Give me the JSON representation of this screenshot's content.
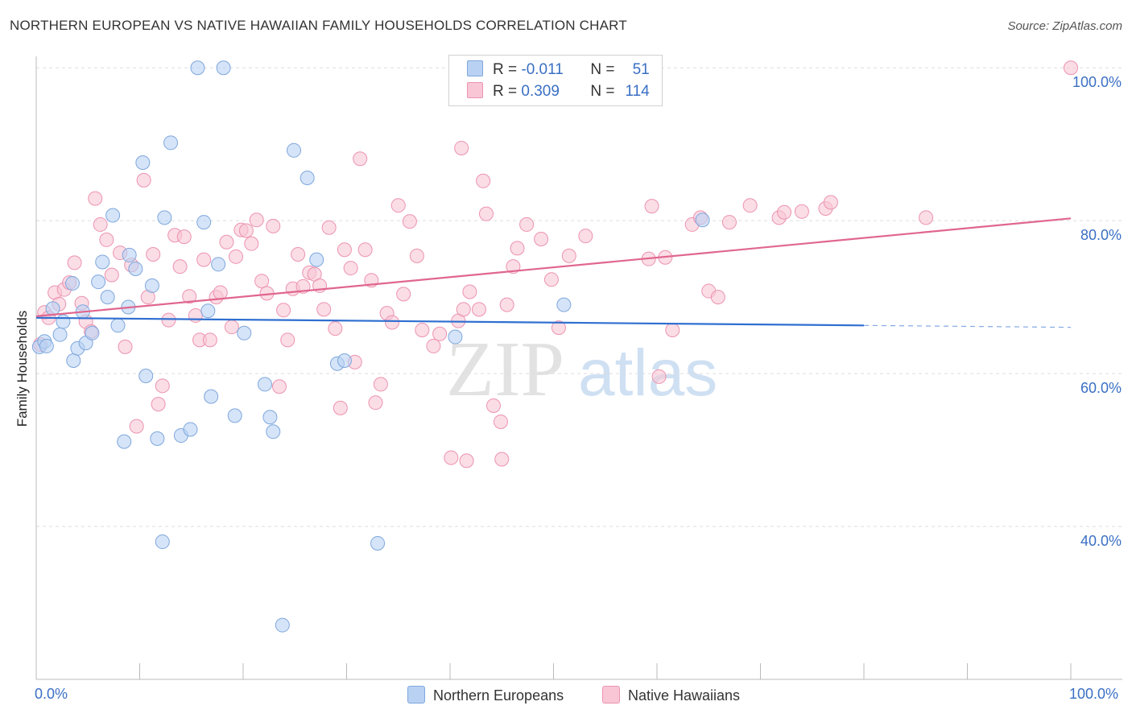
{
  "header": {
    "title": "NORTHERN EUROPEAN VS NATIVE HAWAIIAN FAMILY HOUSEHOLDS CORRELATION CHART",
    "source": "Source: ZipAtlas.com"
  },
  "watermark": {
    "zip": "ZIP",
    "atlas": "atlas"
  },
  "legend": {
    "rows": [
      {
        "r_label": "R = ",
        "r_value": "-0.011",
        "n_label": "N = ",
        "n_value": "51"
      },
      {
        "r_label": "R = ",
        "r_value": "0.309",
        "n_label": "N = ",
        "n_value": "114"
      }
    ]
  },
  "chart_data": {
    "type": "scatter",
    "title": "NORTHERN EUROPEAN VS NATIVE HAWAIIAN FAMILY HOUSEHOLDS CORRELATION CHART",
    "xlabel": "",
    "ylabel": "Family Households",
    "xlim": [
      0,
      100
    ],
    "ylim": [
      20,
      101.5
    ],
    "x_tick_labels": [
      "0.0%",
      "100.0%"
    ],
    "y_ticks": [
      40,
      60,
      80,
      100
    ],
    "y_tick_labels": [
      "40.0%",
      "60.0%",
      "80.0%",
      "100.0%"
    ],
    "grid": true,
    "legend_position": "bottom",
    "colors": {
      "blue_fill": "#b9d2f3",
      "blue_stroke": "#7fa7dd",
      "blue_line": "#2f6fd0",
      "pink_fill": "#f9c6d6",
      "pink_stroke": "#ec93b0",
      "pink_line": "#e0668f",
      "grid": "#dddddd",
      "axis": "#bbbbbb",
      "tick_text": "#3a6fc4"
    },
    "series": [
      {
        "name": "Northern Europeans",
        "r": -0.011,
        "n": 51,
        "trend": {
          "x": [
            0,
            80
          ],
          "y": [
            67.3,
            66.3
          ],
          "dashed_to": 100
        },
        "points": [
          [
            0.3,
            63.5
          ],
          [
            0.8,
            64.2
          ],
          [
            1.0,
            63.6
          ],
          [
            1.6,
            68.5
          ],
          [
            2.3,
            65.1
          ],
          [
            2.6,
            66.8
          ],
          [
            3.5,
            71.8
          ],
          [
            3.6,
            61.7
          ],
          [
            4.0,
            63.3
          ],
          [
            4.5,
            68.1
          ],
          [
            4.8,
            64.0
          ],
          [
            5.4,
            65.3
          ],
          [
            6.0,
            72.0
          ],
          [
            6.4,
            74.6
          ],
          [
            6.9,
            70.0
          ],
          [
            7.4,
            80.7
          ],
          [
            7.9,
            66.3
          ],
          [
            8.5,
            51.1
          ],
          [
            8.9,
            68.7
          ],
          [
            9.0,
            75.5
          ],
          [
            9.6,
            73.7
          ],
          [
            10.3,
            87.6
          ],
          [
            10.6,
            59.7
          ],
          [
            11.2,
            71.5
          ],
          [
            11.7,
            51.5
          ],
          [
            12.2,
            38.0
          ],
          [
            12.4,
            80.4
          ],
          [
            13.0,
            90.2
          ],
          [
            14.0,
            51.9
          ],
          [
            14.9,
            52.7
          ],
          [
            15.6,
            100.0
          ],
          [
            16.2,
            79.8
          ],
          [
            16.6,
            68.2
          ],
          [
            16.9,
            57.0
          ],
          [
            17.6,
            74.3
          ],
          [
            18.1,
            100.0
          ],
          [
            19.2,
            54.5
          ],
          [
            20.1,
            65.3
          ],
          [
            22.1,
            58.6
          ],
          [
            22.6,
            54.3
          ],
          [
            22.9,
            52.4
          ],
          [
            23.8,
            27.1
          ],
          [
            24.9,
            89.2
          ],
          [
            26.2,
            85.6
          ],
          [
            27.1,
            74.9
          ],
          [
            29.1,
            61.3
          ],
          [
            29.8,
            61.7
          ],
          [
            33.0,
            37.8
          ],
          [
            40.5,
            64.8
          ],
          [
            51.0,
            69.0
          ],
          [
            64.4,
            80.1
          ]
        ]
      },
      {
        "name": "Native Hawaiians",
        "r": 0.309,
        "n": 114,
        "trend": {
          "x": [
            0,
            100
          ],
          "y": [
            67.5,
            80.3
          ]
        },
        "points": [
          [
            0.4,
            63.8
          ],
          [
            0.8,
            68.0
          ],
          [
            1.2,
            67.3
          ],
          [
            1.8,
            70.6
          ],
          [
            2.2,
            69.1
          ],
          [
            2.7,
            71.0
          ],
          [
            3.2,
            71.9
          ],
          [
            3.7,
            74.5
          ],
          [
            4.4,
            69.2
          ],
          [
            4.8,
            66.8
          ],
          [
            5.3,
            65.5
          ],
          [
            5.7,
            82.9
          ],
          [
            6.2,
            79.5
          ],
          [
            6.8,
            77.5
          ],
          [
            7.3,
            72.9
          ],
          [
            8.1,
            75.8
          ],
          [
            8.6,
            63.5
          ],
          [
            9.2,
            74.2
          ],
          [
            9.7,
            53.1
          ],
          [
            10.4,
            85.3
          ],
          [
            10.8,
            70.0
          ],
          [
            11.3,
            75.6
          ],
          [
            11.8,
            56.0
          ],
          [
            12.2,
            58.4
          ],
          [
            12.8,
            67.0
          ],
          [
            13.4,
            78.1
          ],
          [
            13.9,
            74.0
          ],
          [
            14.3,
            77.9
          ],
          [
            14.8,
            70.1
          ],
          [
            15.4,
            67.6
          ],
          [
            15.8,
            64.4
          ],
          [
            16.2,
            74.9
          ],
          [
            16.8,
            64.4
          ],
          [
            17.4,
            70.0
          ],
          [
            17.8,
            70.6
          ],
          [
            18.4,
            77.2
          ],
          [
            18.9,
            66.1
          ],
          [
            19.3,
            75.3
          ],
          [
            19.8,
            78.8
          ],
          [
            20.3,
            78.7
          ],
          [
            20.8,
            77.0
          ],
          [
            21.3,
            80.1
          ],
          [
            21.8,
            72.1
          ],
          [
            22.3,
            70.5
          ],
          [
            22.9,
            79.3
          ],
          [
            23.5,
            58.3
          ],
          [
            23.9,
            68.3
          ],
          [
            24.3,
            64.4
          ],
          [
            24.8,
            71.1
          ],
          [
            25.3,
            75.6
          ],
          [
            25.8,
            71.4
          ],
          [
            26.4,
            73.2
          ],
          [
            26.9,
            73.0
          ],
          [
            27.4,
            71.5
          ],
          [
            27.8,
            68.4
          ],
          [
            28.3,
            79.1
          ],
          [
            28.9,
            65.9
          ],
          [
            29.4,
            55.5
          ],
          [
            29.8,
            76.2
          ],
          [
            30.4,
            73.8
          ],
          [
            30.8,
            61.5
          ],
          [
            31.3,
            88.1
          ],
          [
            31.8,
            76.2
          ],
          [
            32.4,
            72.2
          ],
          [
            32.8,
            56.2
          ],
          [
            33.3,
            58.6
          ],
          [
            33.9,
            67.9
          ],
          [
            34.4,
            66.7
          ],
          [
            35.0,
            82.0
          ],
          [
            35.5,
            70.4
          ],
          [
            36.1,
            79.9
          ],
          [
            36.8,
            75.4
          ],
          [
            37.3,
            65.7
          ],
          [
            38.4,
            63.6
          ],
          [
            39.0,
            65.2
          ],
          [
            40.1,
            49.0
          ],
          [
            40.8,
            66.9
          ],
          [
            41.1,
            89.5
          ],
          [
            41.3,
            68.4
          ],
          [
            41.9,
            70.7
          ],
          [
            42.8,
            68.4
          ],
          [
            43.2,
            85.2
          ],
          [
            43.5,
            80.9
          ],
          [
            44.2,
            55.8
          ],
          [
            44.9,
            53.7
          ],
          [
            45.0,
            48.8
          ],
          [
            45.5,
            69.0
          ],
          [
            46.1,
            74.0
          ],
          [
            46.5,
            76.4
          ],
          [
            47.4,
            79.5
          ],
          [
            48.8,
            77.6
          ],
          [
            49.8,
            72.3
          ],
          [
            50.5,
            66.0
          ],
          [
            51.5,
            75.4
          ],
          [
            53.1,
            78.0
          ],
          [
            59.2,
            75.0
          ],
          [
            59.5,
            81.9
          ],
          [
            60.2,
            59.6
          ],
          [
            60.8,
            75.2
          ],
          [
            61.5,
            65.7
          ],
          [
            63.4,
            79.5
          ],
          [
            64.2,
            80.4
          ],
          [
            65.0,
            70.8
          ],
          [
            65.9,
            70.0
          ],
          [
            67.0,
            79.8
          ],
          [
            69.0,
            82.0
          ],
          [
            71.8,
            80.4
          ],
          [
            72.3,
            81.1
          ],
          [
            74.0,
            81.2
          ],
          [
            76.3,
            81.6
          ],
          [
            76.8,
            82.4
          ],
          [
            86.0,
            80.4
          ],
          [
            100.0,
            100.0
          ],
          [
            41.6,
            48.6
          ]
        ]
      }
    ]
  }
}
